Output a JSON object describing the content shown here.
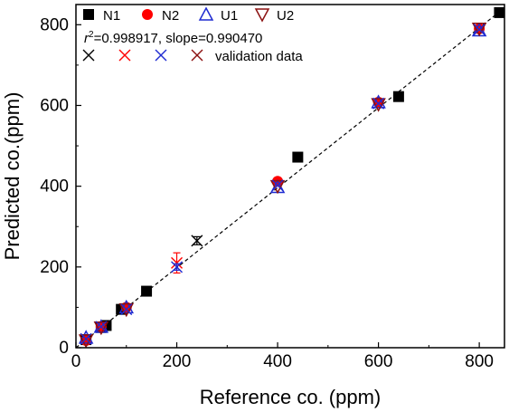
{
  "chart_data": {
    "type": "scatter",
    "xlabel": "Reference co. (ppm)",
    "ylabel": "Predicted co.(ppm)",
    "xlim": [
      0,
      850
    ],
    "ylim": [
      0,
      850
    ],
    "xticks": [
      "0",
      "200",
      "400",
      "600",
      "800"
    ],
    "yticks": [
      "0",
      "200",
      "400",
      "600",
      "800"
    ],
    "grid": false,
    "legend_position": "top-left",
    "fit_text": {
      "prefix": "r",
      "superscript": "2",
      "rest": "=0.998917, slope=0.990470"
    },
    "fit_line": {
      "x": [
        0,
        850
      ],
      "y": [
        0,
        841.9
      ],
      "style": "dashed"
    },
    "series": [
      {
        "name": "N1",
        "marker": "square",
        "color": "#000000",
        "filled": true,
        "x": [
          20,
          50,
          60,
          90,
          140,
          440,
          640,
          840
        ],
        "y": [
          20,
          50,
          55,
          95,
          140,
          472,
          622,
          830
        ]
      },
      {
        "name": "N2",
        "marker": "circle",
        "color": "#ff0000",
        "filled": true,
        "x": [
          20,
          50,
          100,
          400,
          600,
          800
        ],
        "y": [
          18,
          52,
          100,
          412,
          608,
          790
        ]
      },
      {
        "name": "U1",
        "marker": "triangle-up",
        "color": "#1f2bd1",
        "filled": false,
        "x": [
          20,
          50,
          100,
          400,
          600,
          800
        ],
        "y": [
          25,
          52,
          100,
          398,
          608,
          786
        ]
      },
      {
        "name": "U2",
        "marker": "triangle-down",
        "color": "#8b1010",
        "filled": false,
        "x": [
          20,
          50,
          100,
          400,
          600,
          800
        ],
        "y": [
          18,
          50,
          95,
          400,
          603,
          790
        ]
      }
    ],
    "validation_data": {
      "label": "validation data",
      "legend_colors": [
        "#000000",
        "#ff0000",
        "#1f2bd1",
        "#8b1010"
      ],
      "points": [
        {
          "x": 240,
          "y": 265,
          "err": 10,
          "color": "#000000"
        },
        {
          "x": 200,
          "y": 210,
          "err": 25,
          "color": "#ff0000"
        },
        {
          "x": 200,
          "y": 200,
          "err": 8,
          "color": "#1f2bd1"
        },
        {
          "x": 100,
          "y": 95,
          "err": 0,
          "color": "#1f2bd1"
        },
        {
          "x": 20,
          "y": 22,
          "err": 0,
          "color": "#1f2bd1"
        },
        {
          "x": 50,
          "y": 52,
          "err": 0,
          "color": "#1f2bd1"
        },
        {
          "x": 400,
          "y": 402,
          "err": 0,
          "color": "#1f2bd1"
        },
        {
          "x": 600,
          "y": 605,
          "err": 0,
          "color": "#1f2bd1"
        },
        {
          "x": 800,
          "y": 788,
          "err": 0,
          "color": "#1f2bd1"
        }
      ]
    }
  }
}
